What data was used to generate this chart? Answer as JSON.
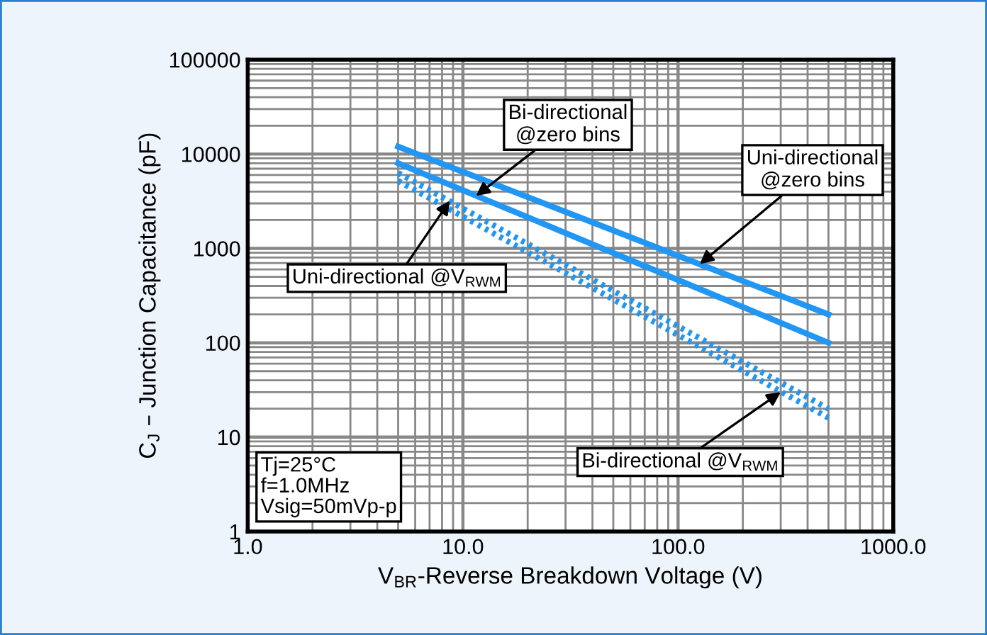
{
  "chart_data": {
    "type": "line",
    "xlabel": "V$_{BR}$-Reverse Breakdown Voltage (V)",
    "ylabel": "C$_{J}$ – Junction Capacitance (pF)",
    "log": "xy",
    "xlim": [
      1,
      1000
    ],
    "ylim": [
      1,
      100000
    ],
    "xticks": [
      {
        "value": 1,
        "label": "1.0"
      },
      {
        "value": 10,
        "label": "10.0"
      },
      {
        "value": 100,
        "label": "100.0"
      },
      {
        "value": 1000,
        "label": "1000.0"
      }
    ],
    "yticks": [
      1,
      10,
      100,
      1000,
      10000,
      100000
    ],
    "grid": true,
    "x": [
      5,
      500
    ],
    "series": [
      {
        "color": "#2196f3",
        "line_style": "solid",
        "values": [
          12000,
          200
        ]
      },
      {
        "color": "#2196f3",
        "line_style": "solid",
        "values": [
          8000,
          100
        ]
      },
      {
        "color": "#2196f3",
        "line_style": "dotted",
        "values": [
          6300,
          20
        ]
      },
      {
        "color": "#2196f3",
        "line_style": "dotted",
        "values": [
          5200,
          16
        ]
      }
    ],
    "annotations": [
      {
        "text": "Uni-directional\n@zero bins",
        "x": 126,
        "y": 680
      },
      {
        "text": "Bi-directional\n@zero bins",
        "x": 11.5,
        "y": 3600
      },
      {
        "text": "Uni-directional @V$_{RWM}$",
        "x": 8.7,
        "y": 3200
      },
      {
        "text": "Bi-directional @V$_{RWM}$",
        "x": 300,
        "y": 30
      },
      "Tj=25°C\nf=1.0MHz\nVsig=50mVp-p"
    ]
  }
}
